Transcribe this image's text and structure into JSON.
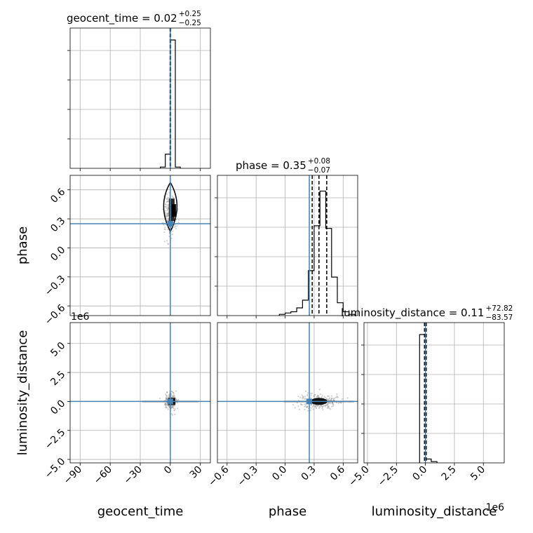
{
  "chart_data": {
    "type": "corner",
    "parameters": [
      "geocent_time",
      "phase",
      "luminosity_distance"
    ],
    "colors": {
      "injection": "#4682b4",
      "hist": "#000000",
      "grid": "#b0b0b0",
      "scatter": "#9a9a9a"
    },
    "axes": {
      "geocent_time": {
        "range": [
          -100,
          40
        ],
        "ticks": [
          -90,
          -60,
          -30,
          0,
          30
        ],
        "tick_labels": [
          "−90",
          "−60",
          "−30",
          "0",
          "30"
        ]
      },
      "phase": {
        "range": [
          -0.7,
          0.75
        ],
        "ticks": [
          -0.6,
          -0.3,
          0.0,
          0.3,
          0.6
        ],
        "tick_labels": [
          "−0.6",
          "−0.3",
          "0.0",
          "0.3",
          "0.6"
        ]
      },
      "luminosity_distance": {
        "range": [
          -5.3,
          6.8
        ],
        "ticks": [
          -5.0,
          -2.5,
          0.0,
          2.5,
          5.0
        ],
        "tick_labels": [
          "−5.0",
          "−2.5",
          "0.0",
          "2.5",
          "5.0"
        ],
        "offset_text": "1e6"
      }
    },
    "titles": [
      {
        "param": "geocent_time",
        "text": "geocent_time = 0.02",
        "sup": "+0.25",
        "sub": "−0.25"
      },
      {
        "param": "phase",
        "text": "phase = 0.35",
        "sup": "+0.08",
        "sub": "−0.07"
      },
      {
        "param": "luminosity_distance",
        "text": "luminosity_distance = 0.11",
        "sup": "+72.82",
        "sub": "−83.57"
      }
    ],
    "axis_labels": {
      "x": [
        "geocent_time",
        "phase",
        "luminosity_distance"
      ],
      "y": [
        "phase",
        "luminosity_distance"
      ]
    },
    "injection": {
      "geocent_time": 0.0,
      "phase": 0.25,
      "luminosity_distance": 0.0
    },
    "quantiles": {
      "geocent_time": [
        -0.23,
        0.02,
        0.27
      ],
      "phase": [
        0.28,
        0.35,
        0.43
      ],
      "luminosity_distance": [
        -0.08,
        0.0,
        0.07
      ]
    },
    "histograms": {
      "geocent_time": {
        "edges": [
          -10,
          -5,
          0,
          5,
          10
        ],
        "counts": [
          0.01,
          0.11,
          1.0,
          0.01
        ]
      },
      "phase": {
        "edges": [
          -0.06,
          0.0,
          0.06,
          0.12,
          0.18,
          0.24,
          0.3,
          0.36,
          0.42,
          0.48,
          0.54,
          0.6,
          0.66,
          0.72
        ],
        "counts": [
          0.01,
          0.02,
          0.03,
          0.06,
          0.12,
          0.35,
          0.7,
          0.97,
          0.68,
          0.3,
          0.1,
          0.03,
          0.01
        ]
      },
      "luminosity_distance": {
        "edges": [
          -0.5,
          0.0,
          0.5,
          1.0
        ],
        "counts": [
          1.0,
          0.03,
          0.01
        ]
      }
    }
  }
}
